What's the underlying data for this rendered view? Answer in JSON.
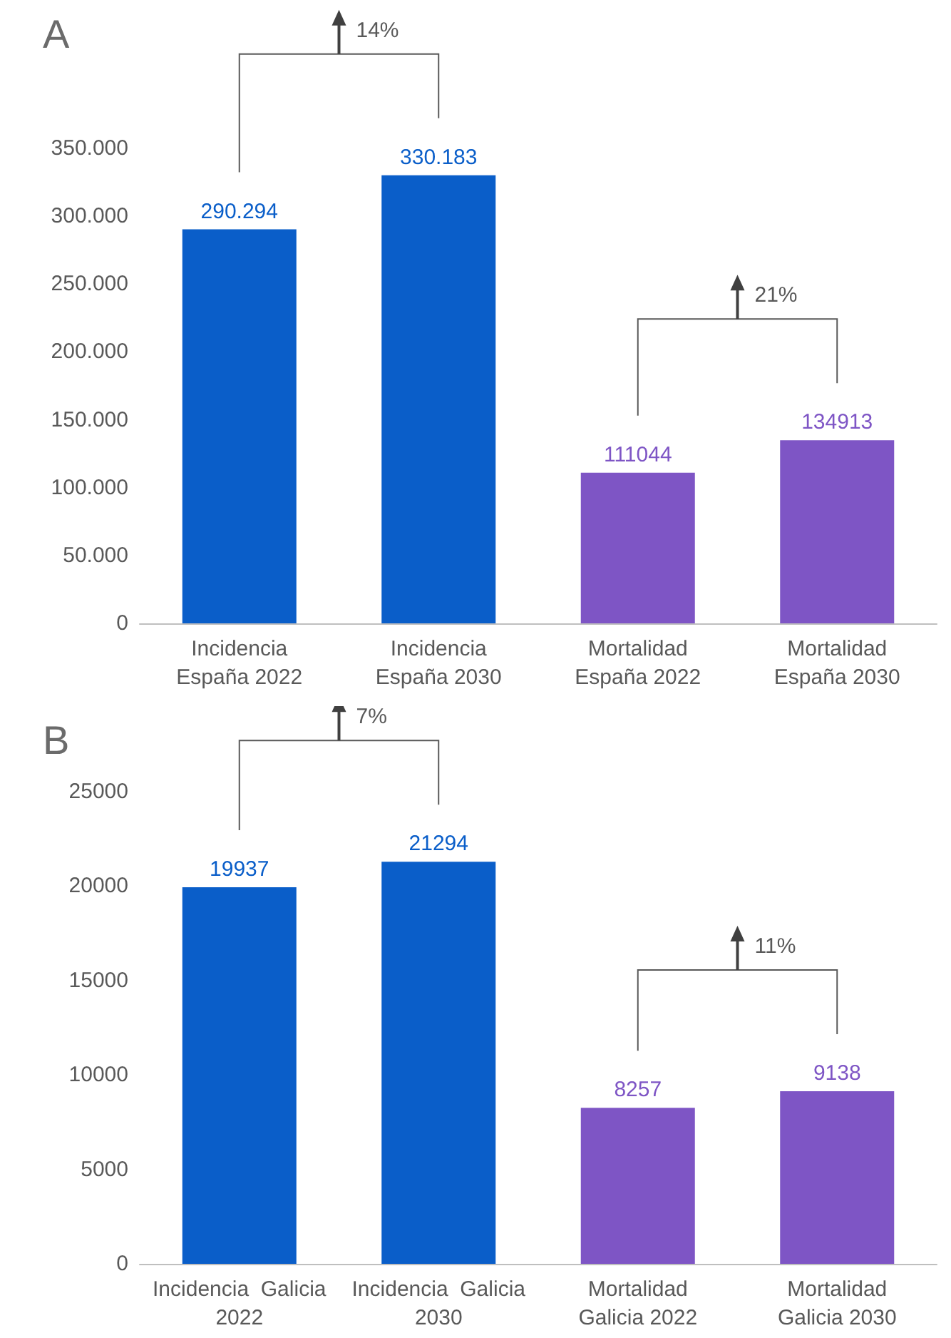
{
  "chart_data": [
    {
      "type": "bar",
      "title": "A",
      "categories": [
        "Incidencia\nEspaña 2022",
        "Incidencia\nEspaña 2030",
        "Mortalidad\nEspaña 2022",
        "Mortalidad\nEspaña 2030"
      ],
      "values": [
        290294,
        330183,
        111044,
        134913
      ],
      "value_labels": [
        "290.294",
        "330.183",
        "111044",
        "134913"
      ],
      "colors": [
        "#0a5ec9",
        "#0a5ec9",
        "#7e55c5",
        "#7e55c5"
      ],
      "ylim": [
        0,
        350000
      ],
      "yticks": [
        0,
        {
          "value": 50000,
          "label": "50.000"
        },
        {
          "value": 100000,
          "label": "100.000"
        },
        {
          "value": 150000,
          "label": "150.000"
        },
        {
          "value": 200000,
          "label": "200.000"
        },
        {
          "value": 250000,
          "label": "250.000"
        },
        {
          "value": 300000,
          "label": "300.000"
        },
        {
          "value": 350000,
          "label": "350.000"
        }
      ],
      "grid": false,
      "annotations": [
        "14%",
        "21%"
      ]
    },
    {
      "type": "bar",
      "title": "B",
      "categories": [
        "Incidencia  Galicia\n2022",
        "Incidencia  Galicia\n2030",
        "Mortalidad\nGalicia 2022",
        "Mortalidad\nGalicia 2030"
      ],
      "values": [
        19937,
        21294,
        8257,
        9138
      ],
      "data_labels": true,
      "colors": [
        "#0a5ec9",
        "#0a5ec9",
        "#7e55c5",
        "#7e55c5"
      ],
      "ylim": [
        0,
        25000
      ],
      "yticks": [
        0,
        5000,
        10000,
        15000,
        20000,
        25000
      ],
      "grid": false,
      "annotations": [
        "7%",
        "11%"
      ]
    }
  ]
}
